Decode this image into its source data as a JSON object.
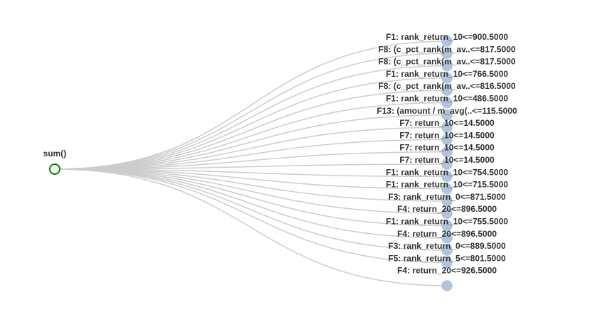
{
  "tree": {
    "root": {
      "label": "sum()"
    },
    "leaves": [
      {
        "label": "F1: rank_return_10<=900.5000"
      },
      {
        "label": "F8: (c_pct_rank(m_av..<=817.5000"
      },
      {
        "label": "F8: (c_pct_rank(m_av..<=817.5000"
      },
      {
        "label": "F1: rank_return_10<=766.5000"
      },
      {
        "label": "F8: (c_pct_rank(m_av..<=816.5000"
      },
      {
        "label": "F1: rank_return_10<=486.5000"
      },
      {
        "label": "F13: (amount / m_avg(..<=115.5000"
      },
      {
        "label": "F7: return_10<=14.5000"
      },
      {
        "label": "F7: return_10<=14.5000"
      },
      {
        "label": "F7: return_10<=14.5000"
      },
      {
        "label": "F7: return_10<=14.5000"
      },
      {
        "label": "F1: rank_return_10<=754.5000"
      },
      {
        "label": "F1: rank_return_10<=715.5000"
      },
      {
        "label": "F3: rank_return_0<=871.5000"
      },
      {
        "label": "F4: return_20<=896.5000"
      },
      {
        "label": "F1: rank_return_10<=755.5000"
      },
      {
        "label": "F4: return_20<=896.5000"
      },
      {
        "label": "F3: rank_return_0<=889.5000"
      },
      {
        "label": "F5: rank_return_5<=801.5000"
      },
      {
        "label": "F4: return_20<=926.5000"
      }
    ]
  },
  "colors": {
    "edge": "#cccccc",
    "leaf_fill": "#b0c4de",
    "root_stroke": "#008000",
    "label": "#333333"
  }
}
